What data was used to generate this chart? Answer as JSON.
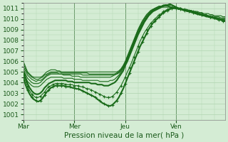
{
  "xlabel": "Pression niveau de la mer( hPa )",
  "xlim": [
    0,
    95
  ],
  "ylim": [
    1000.5,
    1011.5
  ],
  "yticks": [
    1001,
    1002,
    1003,
    1004,
    1005,
    1006,
    1007,
    1008,
    1009,
    1010,
    1011
  ],
  "xtick_positions": [
    0,
    24,
    48,
    72
  ],
  "xtick_labels": [
    "Mar",
    "Mer",
    "Jeu",
    "Ven"
  ],
  "vlines": [
    24,
    48,
    72
  ],
  "bg_color": "#d4ecd4",
  "grid_color": "#b0d4b0",
  "line_color": "#1a6b1a",
  "series": [
    {
      "y": [
        1006.0,
        1005.5,
        1005.0,
        1004.8,
        1004.6,
        1004.5,
        1004.5,
        1004.5,
        1004.5,
        1004.6,
        1004.8,
        1005.0,
        1005.1,
        1005.2,
        1005.2,
        1005.2,
        1005.1,
        1005.1,
        1005.0,
        1005.0,
        1005.0,
        1005.0,
        1005.0,
        1005.0,
        1005.0,
        1005.0,
        1005.0,
        1005.0,
        1005.0,
        1005.0,
        1005.0,
        1005.0,
        1005.0,
        1005.0,
        1005.0,
        1005.0,
        1005.0,
        1005.0,
        1005.0,
        1005.0,
        1005.0,
        1005.0,
        1005.0,
        1005.0,
        1005.0,
        1005.1,
        1005.3,
        1005.6,
        1006.0,
        1006.5,
        1007.0,
        1007.5,
        1008.0,
        1008.5,
        1009.0,
        1009.4,
        1009.8,
        1010.1,
        1010.4,
        1010.6,
        1010.8,
        1010.9,
        1011.0,
        1011.0,
        1011.1,
        1011.1,
        1011.1,
        1011.1,
        1011.1,
        1011.1,
        1011.0,
        1011.0,
        1011.0,
        1010.9,
        1010.9,
        1010.9,
        1010.9,
        1010.8,
        1010.8,
        1010.8,
        1010.7,
        1010.7,
        1010.7,
        1010.6,
        1010.6,
        1010.5,
        1010.5,
        1010.5,
        1010.4,
        1010.4,
        1010.3,
        1010.3,
        1010.3,
        1010.3,
        1010.2,
        1010.2
      ],
      "lw": 0.8,
      "marker": false
    },
    {
      "y": [
        1005.8,
        1005.3,
        1004.9,
        1004.7,
        1004.5,
        1004.4,
        1004.3,
        1004.3,
        1004.4,
        1004.5,
        1004.7,
        1004.8,
        1004.9,
        1005.0,
        1005.0,
        1005.0,
        1005.0,
        1005.0,
        1004.9,
        1004.9,
        1004.9,
        1004.9,
        1004.9,
        1004.9,
        1004.9,
        1004.9,
        1004.9,
        1004.9,
        1004.9,
        1004.9,
        1004.9,
        1004.8,
        1004.8,
        1004.8,
        1004.8,
        1004.8,
        1004.8,
        1004.8,
        1004.8,
        1004.8,
        1004.8,
        1004.8,
        1004.8,
        1004.8,
        1004.9,
        1005.0,
        1005.2,
        1005.5,
        1005.9,
        1006.4,
        1006.9,
        1007.4,
        1007.9,
        1008.4,
        1008.9,
        1009.3,
        1009.7,
        1010.0,
        1010.3,
        1010.5,
        1010.7,
        1010.9,
        1011.0,
        1011.1,
        1011.2,
        1011.2,
        1011.2,
        1011.2,
        1011.2,
        1011.1,
        1011.1,
        1011.0,
        1011.0,
        1010.9,
        1010.9,
        1010.9,
        1010.8,
        1010.8,
        1010.7,
        1010.7,
        1010.7,
        1010.6,
        1010.6,
        1010.5,
        1010.5,
        1010.4,
        1010.4,
        1010.3,
        1010.3,
        1010.3,
        1010.2,
        1010.2,
        1010.2,
        1010.1,
        1010.1,
        1010.1
      ],
      "lw": 0.8,
      "marker": false
    },
    {
      "y": [
        1005.5,
        1005.1,
        1004.7,
        1004.5,
        1004.3,
        1004.2,
        1004.1,
        1004.2,
        1004.2,
        1004.3,
        1004.5,
        1004.7,
        1004.8,
        1004.9,
        1004.9,
        1004.9,
        1004.9,
        1004.8,
        1004.8,
        1004.8,
        1004.8,
        1004.8,
        1004.8,
        1004.8,
        1004.8,
        1004.8,
        1004.8,
        1004.8,
        1004.7,
        1004.7,
        1004.7,
        1004.7,
        1004.7,
        1004.7,
        1004.7,
        1004.7,
        1004.7,
        1004.7,
        1004.7,
        1004.7,
        1004.7,
        1004.7,
        1004.7,
        1004.8,
        1004.8,
        1005.0,
        1005.2,
        1005.5,
        1005.8,
        1006.3,
        1006.8,
        1007.3,
        1007.8,
        1008.3,
        1008.8,
        1009.2,
        1009.6,
        1009.9,
        1010.2,
        1010.5,
        1010.7,
        1010.8,
        1011.0,
        1011.1,
        1011.2,
        1011.2,
        1011.3,
        1011.3,
        1011.2,
        1011.2,
        1011.1,
        1011.1,
        1011.0,
        1010.9,
        1010.9,
        1010.8,
        1010.8,
        1010.7,
        1010.7,
        1010.6,
        1010.6,
        1010.5,
        1010.5,
        1010.5,
        1010.4,
        1010.4,
        1010.3,
        1010.3,
        1010.2,
        1010.2,
        1010.1,
        1010.1,
        1010.1,
        1010.0,
        1010.0,
        1010.0
      ],
      "lw": 0.8,
      "marker": false
    },
    {
      "y": [
        1005.3,
        1004.8,
        1004.4,
        1004.2,
        1004.0,
        1003.9,
        1003.9,
        1003.9,
        1004.0,
        1004.2,
        1004.4,
        1004.6,
        1004.7,
        1004.8,
        1004.8,
        1004.8,
        1004.8,
        1004.8,
        1004.8,
        1004.7,
        1004.7,
        1004.7,
        1004.7,
        1004.6,
        1004.6,
        1004.6,
        1004.6,
        1004.5,
        1004.5,
        1004.5,
        1004.5,
        1004.5,
        1004.5,
        1004.5,
        1004.5,
        1004.5,
        1004.5,
        1004.5,
        1004.5,
        1004.5,
        1004.5,
        1004.5,
        1004.6,
        1004.7,
        1004.8,
        1004.9,
        1005.1,
        1005.4,
        1005.7,
        1006.2,
        1006.7,
        1007.2,
        1007.7,
        1008.2,
        1008.7,
        1009.1,
        1009.5,
        1009.8,
        1010.1,
        1010.4,
        1010.6,
        1010.8,
        1010.9,
        1011.0,
        1011.1,
        1011.2,
        1011.2,
        1011.3,
        1011.3,
        1011.3,
        1011.3,
        1011.2,
        1011.1,
        1011.0,
        1011.0,
        1010.9,
        1010.8,
        1010.8,
        1010.7,
        1010.7,
        1010.6,
        1010.6,
        1010.5,
        1010.4,
        1010.4,
        1010.3,
        1010.3,
        1010.2,
        1010.2,
        1010.1,
        1010.1,
        1010.1,
        1010.0,
        1010.0,
        1009.9,
        1009.9
      ],
      "lw": 0.8,
      "marker": false
    },
    {
      "y": [
        1005.0,
        1004.5,
        1004.1,
        1003.9,
        1003.7,
        1003.6,
        1003.6,
        1003.6,
        1003.7,
        1003.9,
        1004.1,
        1004.3,
        1004.4,
        1004.5,
        1004.5,
        1004.5,
        1004.5,
        1004.5,
        1004.5,
        1004.4,
        1004.4,
        1004.4,
        1004.4,
        1004.4,
        1004.3,
        1004.3,
        1004.3,
        1004.3,
        1004.2,
        1004.2,
        1004.2,
        1004.2,
        1004.2,
        1004.2,
        1004.2,
        1004.2,
        1004.1,
        1004.1,
        1004.1,
        1004.1,
        1004.1,
        1004.2,
        1004.2,
        1004.3,
        1004.5,
        1004.7,
        1005.0,
        1005.3,
        1005.7,
        1006.1,
        1006.6,
        1007.1,
        1007.6,
        1008.1,
        1008.6,
        1009.0,
        1009.4,
        1009.7,
        1010.0,
        1010.3,
        1010.5,
        1010.7,
        1010.9,
        1011.0,
        1011.1,
        1011.2,
        1011.3,
        1011.3,
        1011.3,
        1011.4,
        1011.3,
        1011.2,
        1011.1,
        1011.0,
        1010.9,
        1010.9,
        1010.8,
        1010.7,
        1010.7,
        1010.6,
        1010.6,
        1010.5,
        1010.4,
        1010.4,
        1010.3,
        1010.3,
        1010.2,
        1010.2,
        1010.1,
        1010.1,
        1010.0,
        1010.0,
        1009.9,
        1009.9,
        1009.9,
        1009.8
      ],
      "lw": 0.8,
      "marker": false
    },
    {
      "y": [
        1005.2,
        1004.5,
        1003.9,
        1003.5,
        1003.2,
        1003.0,
        1002.9,
        1002.9,
        1003.0,
        1003.2,
        1003.5,
        1003.7,
        1003.9,
        1004.0,
        1004.1,
        1004.2,
        1004.2,
        1004.2,
        1004.2,
        1004.2,
        1004.2,
        1004.1,
        1004.1,
        1004.1,
        1004.0,
        1004.0,
        1004.0,
        1004.0,
        1004.0,
        1004.0,
        1004.0,
        1004.0,
        1003.9,
        1003.9,
        1003.9,
        1003.8,
        1003.8,
        1003.8,
        1003.7,
        1003.7,
        1003.7,
        1003.8,
        1003.9,
        1004.0,
        1004.2,
        1004.5,
        1004.8,
        1005.1,
        1005.6,
        1006.0,
        1006.5,
        1007.0,
        1007.5,
        1008.0,
        1008.5,
        1008.9,
        1009.3,
        1009.7,
        1010.0,
        1010.3,
        1010.5,
        1010.7,
        1010.8,
        1010.9,
        1011.0,
        1011.1,
        1011.2,
        1011.3,
        1011.3,
        1011.4,
        1011.3,
        1011.2,
        1011.1,
        1011.0,
        1011.0,
        1010.9,
        1010.8,
        1010.8,
        1010.7,
        1010.7,
        1010.6,
        1010.5,
        1010.5,
        1010.4,
        1010.4,
        1010.3,
        1010.3,
        1010.2,
        1010.2,
        1010.1,
        1010.1,
        1010.0,
        1010.0,
        1009.9,
        1009.9,
        1009.8
      ],
      "lw": 1.5,
      "marker": false
    },
    {
      "y": [
        1004.8,
        1004.2,
        1003.6,
        1003.2,
        1002.9,
        1002.7,
        1002.6,
        1002.6,
        1002.7,
        1002.9,
        1003.1,
        1003.4,
        1003.6,
        1003.7,
        1003.8,
        1003.9,
        1003.9,
        1003.9,
        1003.9,
        1003.9,
        1003.8,
        1003.8,
        1003.8,
        1003.8,
        1003.7,
        1003.7,
        1003.7,
        1003.6,
        1003.6,
        1003.5,
        1003.4,
        1003.4,
        1003.3,
        1003.2,
        1003.1,
        1003.0,
        1002.9,
        1002.8,
        1002.7,
        1002.6,
        1002.6,
        1002.6,
        1002.7,
        1002.9,
        1003.1,
        1003.4,
        1003.7,
        1004.1,
        1004.5,
        1005.0,
        1005.4,
        1005.9,
        1006.4,
        1006.9,
        1007.4,
        1007.9,
        1008.3,
        1008.7,
        1009.0,
        1009.3,
        1009.6,
        1009.8,
        1010.0,
        1010.2,
        1010.4,
        1010.5,
        1010.7,
        1010.8,
        1010.9,
        1011.0,
        1011.1,
        1011.1,
        1011.1,
        1011.0,
        1011.0,
        1010.9,
        1010.9,
        1010.9,
        1010.8,
        1010.8,
        1010.7,
        1010.7,
        1010.6,
        1010.5,
        1010.5,
        1010.4,
        1010.4,
        1010.3,
        1010.2,
        1010.2,
        1010.1,
        1010.1,
        1010.0,
        1010.0,
        1009.9,
        1009.9
      ],
      "lw": 0.8,
      "marker": true
    },
    {
      "y": [
        1004.5,
        1003.8,
        1003.3,
        1002.9,
        1002.6,
        1002.4,
        1002.3,
        1002.2,
        1002.3,
        1002.5,
        1002.8,
        1003.1,
        1003.3,
        1003.5,
        1003.6,
        1003.7,
        1003.7,
        1003.7,
        1003.7,
        1003.7,
        1003.6,
        1003.6,
        1003.6,
        1003.5,
        1003.5,
        1003.4,
        1003.4,
        1003.3,
        1003.2,
        1003.1,
        1003.0,
        1002.9,
        1002.8,
        1002.7,
        1002.6,
        1002.4,
        1002.3,
        1002.1,
        1002.0,
        1001.9,
        1001.8,
        1001.8,
        1001.9,
        1002.1,
        1002.3,
        1002.6,
        1003.0,
        1003.4,
        1003.9,
        1004.4,
        1004.9,
        1005.4,
        1005.9,
        1006.4,
        1006.9,
        1007.4,
        1007.8,
        1008.2,
        1008.6,
        1009.0,
        1009.3,
        1009.6,
        1009.8,
        1010.0,
        1010.2,
        1010.4,
        1010.6,
        1010.7,
        1010.8,
        1010.9,
        1011.0,
        1011.0,
        1011.0,
        1011.0,
        1010.9,
        1010.9,
        1010.8,
        1010.8,
        1010.7,
        1010.7,
        1010.6,
        1010.6,
        1010.5,
        1010.4,
        1010.4,
        1010.3,
        1010.3,
        1010.2,
        1010.2,
        1010.1,
        1010.1,
        1010.0,
        1009.9,
        1009.9,
        1009.8,
        1009.8
      ],
      "lw": 1.5,
      "marker": true
    }
  ]
}
